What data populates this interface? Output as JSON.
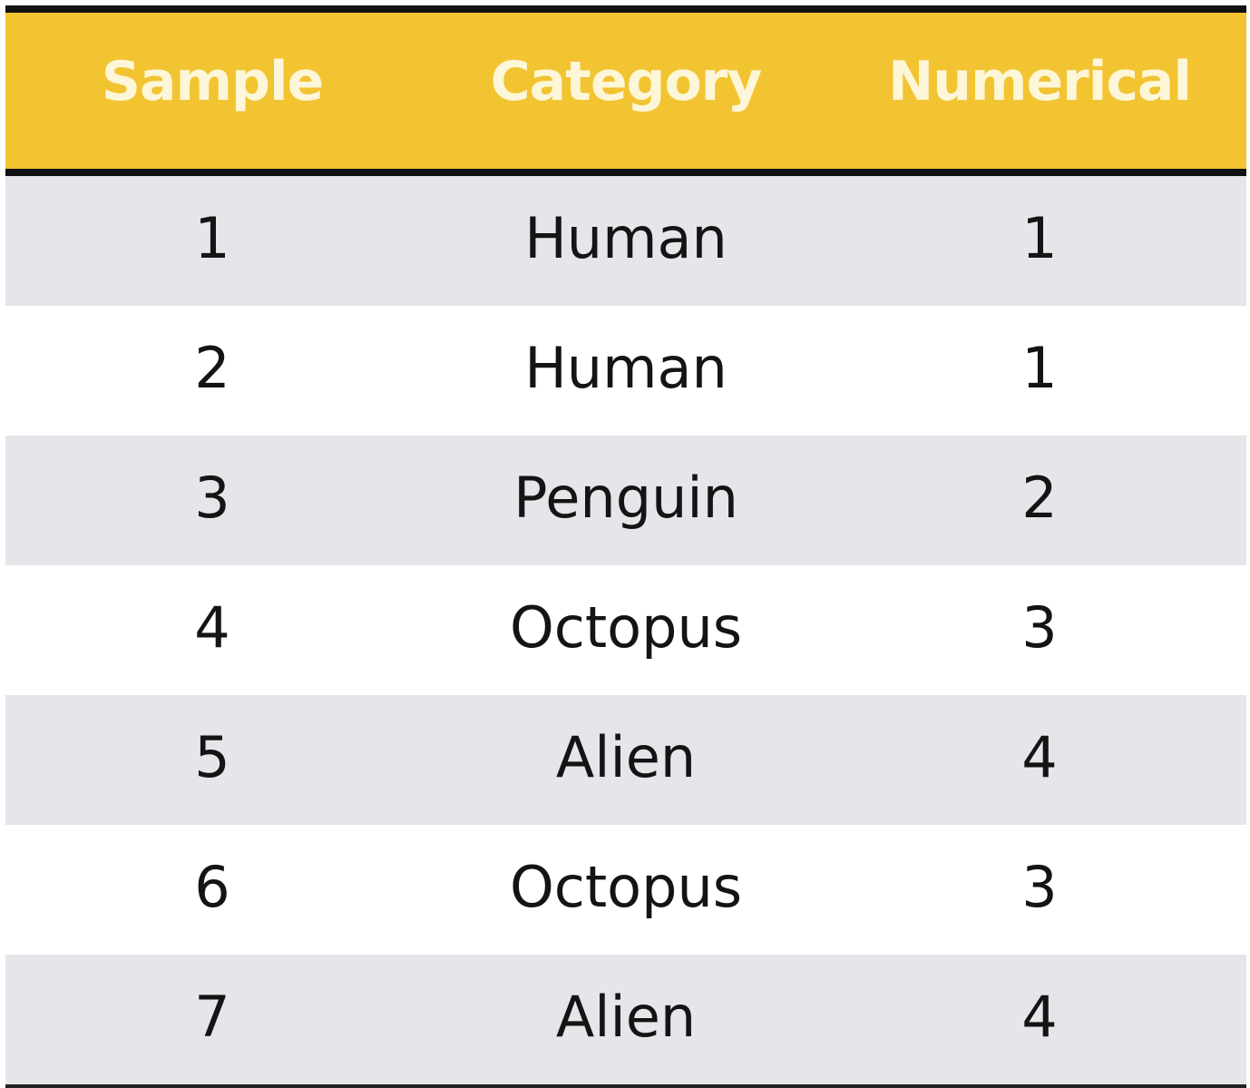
{
  "table": {
    "columns": [
      "Sample",
      "Category",
      "Numerical"
    ],
    "rows": [
      {
        "sample": "1",
        "category": "Human",
        "numerical": "1"
      },
      {
        "sample": "2",
        "category": "Human",
        "numerical": "1"
      },
      {
        "sample": "3",
        "category": "Penguin",
        "numerical": "2"
      },
      {
        "sample": "4",
        "category": "Octopus",
        "numerical": "3"
      },
      {
        "sample": "5",
        "category": "Alien",
        "numerical": "4"
      },
      {
        "sample": "6",
        "category": "Octopus",
        "numerical": "3"
      },
      {
        "sample": "7",
        "category": "Alien",
        "numerical": "4"
      }
    ]
  },
  "colors": {
    "header_background": "#f2c431",
    "header_text": "#fdf6d8",
    "row_stripe": "#e6e5ea",
    "row_plain": "#ffffff",
    "rule": "#111111"
  }
}
